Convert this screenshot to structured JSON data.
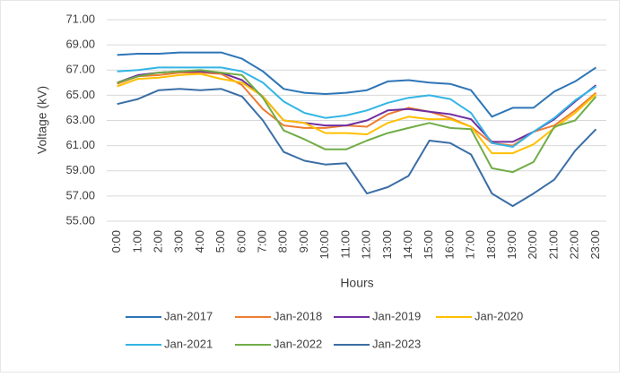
{
  "chart_data": {
    "type": "line",
    "y_label": "Voltage (kV)",
    "x_label": "Hours",
    "categories": [
      "0:00",
      "1:00",
      "2:00",
      "3:00",
      "4:00",
      "5:00",
      "6:00",
      "7:00",
      "8:00",
      "9:00",
      "10:00",
      "11:00",
      "12:00",
      "13:00",
      "14:00",
      "15:00",
      "16:00",
      "17:00",
      "18:00",
      "19:00",
      "20:00",
      "21:00",
      "22:00",
      "23:00"
    ],
    "ylim": [
      55,
      71
    ],
    "yticks": [
      {
        "value": 55,
        "label": "55.00"
      },
      {
        "value": 57,
        "label": "57.00"
      },
      {
        "value": 59,
        "label": "59.00"
      },
      {
        "value": 61,
        "label": "61.00"
      },
      {
        "value": 63,
        "label": "63.00"
      },
      {
        "value": 65,
        "label": "65.00"
      },
      {
        "value": 67,
        "label": "67.00"
      },
      {
        "value": 69,
        "label": "69.00"
      },
      {
        "value": 71,
        "label": "71.00"
      }
    ],
    "grid": true,
    "legend": "bottom",
    "series": [
      {
        "name": "Jan-2017",
        "color": "#2e75b6",
        "values": [
          68.2,
          68.3,
          68.3,
          68.4,
          68.4,
          68.4,
          67.9,
          66.9,
          65.5,
          65.2,
          65.1,
          65.2,
          65.4,
          66.1,
          66.2,
          66.0,
          65.9,
          65.4,
          63.3,
          64.0,
          64.0,
          65.3,
          66.1,
          67.2
        ]
      },
      {
        "name": "Jan-2018",
        "color": "#ed7d31",
        "values": [
          65.9,
          66.5,
          66.6,
          66.8,
          66.8,
          66.7,
          65.8,
          63.9,
          62.6,
          62.4,
          62.4,
          62.6,
          62.5,
          63.5,
          64.0,
          63.7,
          63.2,
          62.5,
          61.2,
          61.0,
          62.1,
          62.6,
          63.8,
          65.2
        ]
      },
      {
        "name": "Jan-2019",
        "color": "#7030a0",
        "values": [
          66.0,
          66.6,
          66.8,
          66.9,
          66.9,
          66.8,
          66.2,
          64.9,
          63.0,
          62.8,
          62.6,
          62.6,
          63.0,
          63.8,
          63.9,
          63.7,
          63.5,
          63.1,
          61.3,
          61.3,
          62.1,
          63.1,
          64.5,
          65.8
        ]
      },
      {
        "name": "Jan-2020",
        "color": "#ffc000",
        "values": [
          65.7,
          66.3,
          66.4,
          66.6,
          66.7,
          66.3,
          66.0,
          64.9,
          63.0,
          62.8,
          62.0,
          62.0,
          61.9,
          62.8,
          63.3,
          63.1,
          63.1,
          62.5,
          60.4,
          60.4,
          61.1,
          62.4,
          63.6,
          65.1
        ]
      },
      {
        "name": "Jan-2021",
        "color": "#33b5e5",
        "values": [
          66.9,
          67.0,
          67.2,
          67.2,
          67.2,
          67.2,
          66.9,
          66.0,
          64.5,
          63.6,
          63.2,
          63.4,
          63.8,
          64.4,
          64.8,
          65.0,
          64.7,
          63.6,
          61.2,
          60.9,
          62.1,
          63.2,
          64.6,
          65.7
        ]
      },
      {
        "name": "Jan-2022",
        "color": "#70ad47",
        "values": [
          66.0,
          66.5,
          66.8,
          66.9,
          67.0,
          66.8,
          66.6,
          64.8,
          62.2,
          61.5,
          60.7,
          60.7,
          61.4,
          62.0,
          62.4,
          62.8,
          62.4,
          62.3,
          59.2,
          58.9,
          59.7,
          62.5,
          63.0,
          64.9
        ]
      },
      {
        "name": "Jan-2023",
        "color": "#3a6ea5",
        "values": [
          64.3,
          64.7,
          65.4,
          65.5,
          65.4,
          65.5,
          64.9,
          63.0,
          60.5,
          59.8,
          59.5,
          59.6,
          57.2,
          57.7,
          58.6,
          61.4,
          61.2,
          60.3,
          57.2,
          56.2,
          57.2,
          58.3,
          60.6,
          62.3
        ]
      }
    ]
  }
}
